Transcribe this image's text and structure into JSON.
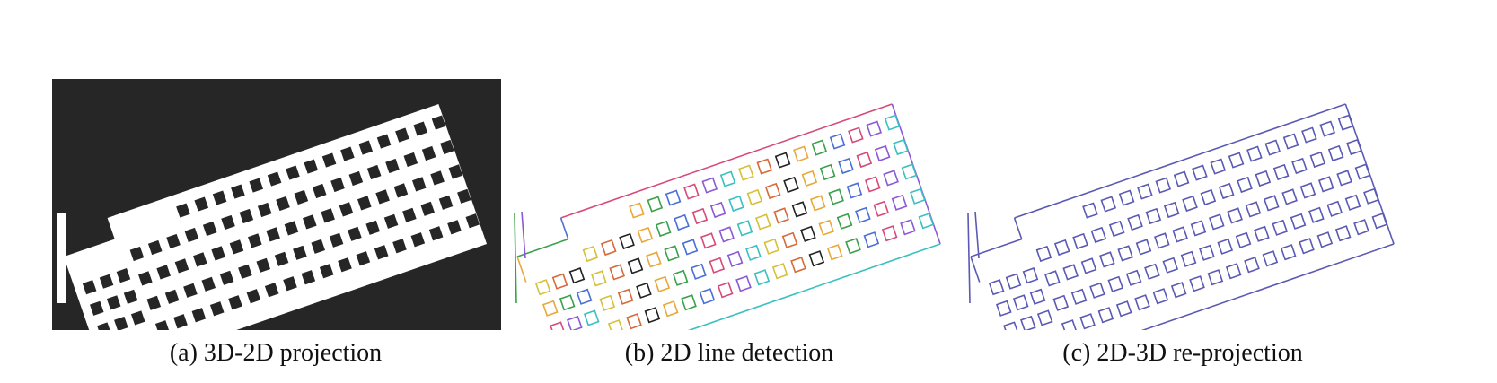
{
  "figure": {
    "panels": [
      {
        "id": "a",
        "caption": "(a) 3D-2D projection",
        "style": "binary-mask",
        "bg": "#262626",
        "fg": "#ffffff"
      },
      {
        "id": "b",
        "caption": "(b) 2D line detection",
        "style": "multicolor-lines",
        "colors": [
          "#e8a83a",
          "#3aa04a",
          "#4a6fd6",
          "#d64a7a",
          "#8a5ad6",
          "#3ac0c0",
          "#d6c03a",
          "#d66a3a",
          "#222222"
        ]
      },
      {
        "id": "c",
        "caption": "(c) 2D-3D re-projection",
        "style": "single-color-lines",
        "line_color": "#5a5ab4"
      }
    ]
  }
}
